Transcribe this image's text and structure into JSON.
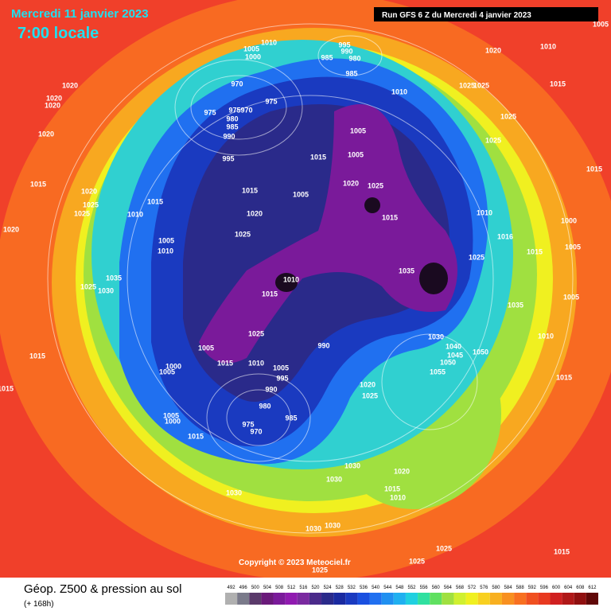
{
  "header": {
    "title": "Mercredi 11 janvier 2023",
    "time": "7:00 locale",
    "run": "Run GFS 6 Z du Mercredi 4 janvier 2023"
  },
  "map": {
    "pressure_labels": [
      1010,
      1005,
      1000,
      995,
      990,
      985,
      980,
      985,
      1020,
      1010,
      1005,
      1020,
      1020,
      1020,
      1020,
      1015,
      1020,
      970,
      975,
      975,
      975,
      970,
      980,
      985,
      990,
      995,
      1010,
      1025,
      1025,
      1015,
      1025,
      1005,
      1005,
      1025,
      1015,
      1015,
      1005,
      1020,
      1025,
      1015,
      1020,
      1025,
      1025,
      1010,
      1015,
      1015,
      1020,
      1010,
      1000,
      1025,
      1005,
      1010,
      1016,
      1005,
      1015,
      1025,
      1035,
      1035,
      1010,
      1025,
      1030,
      1015,
      1005,
      1035,
      1025,
      1030,
      1040,
      1045,
      1050,
      1050,
      1055,
      990,
      1005,
      1010,
      1015,
      1010,
      1000,
      1005,
      1005,
      995,
      990,
      1015,
      1015,
      1015,
      1020,
      1025,
      980,
      985,
      975,
      970,
      1005,
      1000,
      1015,
      1030,
      1030,
      1020,
      1015,
      1010,
      1030,
      1030,
      1030,
      1025,
      1025,
      1015,
      1025
    ]
  },
  "copyright": "Copyright © 2023 Meteociel.fr",
  "footer": {
    "title": "Géop. Z500 & pression au sol",
    "subtitle": "(+ 168h)"
  },
  "legend": {
    "values": [
      492,
      496,
      500,
      504,
      508,
      512,
      516,
      520,
      524,
      528,
      532,
      536,
      540,
      544,
      548,
      552,
      556,
      560,
      564,
      568,
      572,
      576,
      580,
      584,
      588,
      592,
      596,
      600,
      604,
      608,
      612
    ],
    "colors": [
      "#b0b0b0",
      "#7a7a8a",
      "#5a3a6a",
      "#6a1a7a",
      "#7a1a9a",
      "#901ab0",
      "#7a2aa0",
      "#4a2a8a",
      "#2a2a8a",
      "#1a2aa0",
      "#1a3ac0",
      "#1a50e0",
      "#2070f0",
      "#2090f0",
      "#20b0f0",
      "#20d0e0",
      "#30e0a0",
      "#60e060",
      "#a0e040",
      "#d0f030",
      "#f0f020",
      "#f8d020",
      "#f8b020",
      "#f89020",
      "#f87020",
      "#f05020",
      "#e83a20",
      "#d02020",
      "#b01818",
      "#901010",
      "#600808"
    ]
  }
}
